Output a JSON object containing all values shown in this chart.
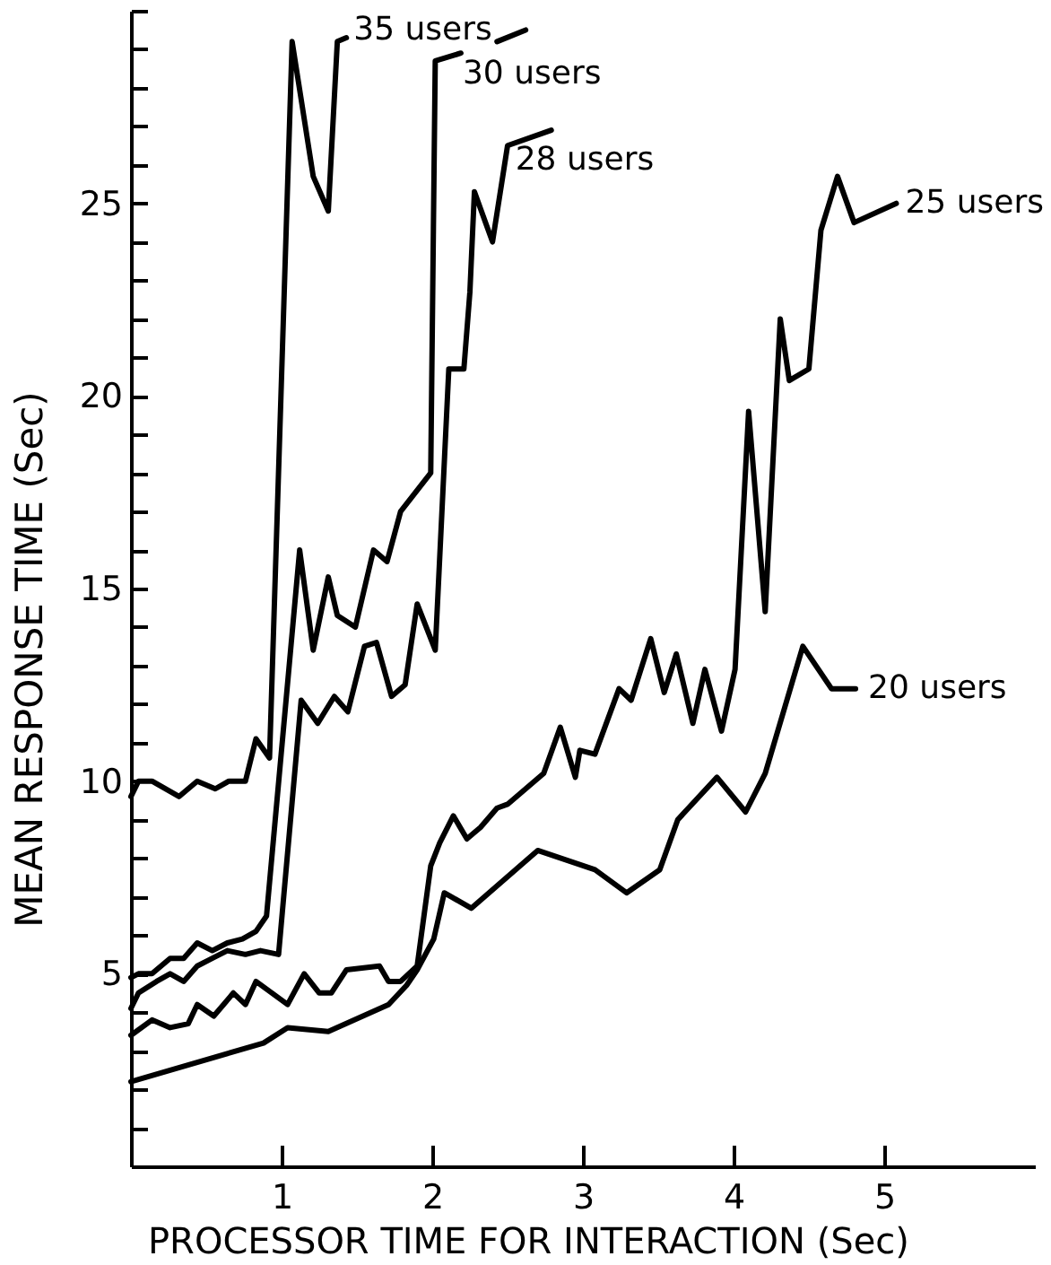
{
  "chart_data": {
    "type": "line",
    "xlabel": "PROCESSOR TIME FOR INTERACTION (Sec)",
    "ylabel": "MEAN RESPONSE TIME (Sec)",
    "xlim": [
      0,
      6
    ],
    "ylim": [
      0,
      30
    ],
    "xticks": [
      1,
      2,
      3,
      4,
      5
    ],
    "yticks": [
      {
        "value": 1,
        "label": null
      },
      {
        "value": 2,
        "label": null
      },
      {
        "value": 3,
        "label": null
      },
      {
        "value": 4,
        "label": null
      },
      5,
      {
        "value": 6,
        "label": null
      },
      {
        "value": 7,
        "label": null
      },
      {
        "value": 8,
        "label": null
      },
      {
        "value": 9,
        "label": null
      },
      10,
      {
        "value": 11,
        "label": null
      },
      {
        "value": 12,
        "label": null
      },
      {
        "value": 13,
        "label": null
      },
      {
        "value": 14,
        "label": null
      },
      15,
      {
        "value": 16,
        "label": null
      },
      {
        "value": 17,
        "label": null
      },
      {
        "value": 18,
        "label": null
      },
      {
        "value": 19,
        "label": null
      },
      20,
      {
        "value": 21,
        "label": null
      },
      {
        "value": 22,
        "label": null
      },
      {
        "value": 23,
        "label": null
      },
      {
        "value": 24,
        "label": null
      },
      25,
      {
        "value": 26,
        "label": null
      },
      {
        "value": 27,
        "label": null
      },
      {
        "value": 28,
        "label": null
      },
      {
        "value": 29,
        "label": null
      },
      {
        "value": 30,
        "label": null
      }
    ],
    "series": [
      {
        "name": "35 users",
        "color": "#000000",
        "x": [
          0,
          0.05,
          0.14,
          0.32,
          0.44,
          0.56,
          0.65,
          0.76,
          0.83,
          0.92,
          1.07,
          1.21,
          1.31,
          1.37,
          1.43,
          1.9,
          2.43,
          2.62
        ],
        "values": [
          9.6,
          10.0,
          10.0,
          9.6,
          10.0,
          9.8,
          10.0,
          10.0,
          11.1,
          10.6,
          29.2,
          25.7,
          24.8,
          29.2,
          29.3,
          null,
          29.2,
          29.5
        ]
      },
      {
        "name": "30 users",
        "color": "#000000",
        "x": [
          0,
          0.05,
          0.14,
          0.26,
          0.35,
          0.44,
          0.54,
          0.64,
          0.74,
          0.83,
          0.9,
          1.12,
          1.21,
          1.31,
          1.37,
          1.49,
          1.61,
          1.7,
          1.79,
          1.99,
          2.02,
          2.19
        ],
        "values": [
          4.9,
          5.0,
          5.0,
          5.4,
          5.4,
          5.8,
          5.6,
          5.8,
          5.9,
          6.1,
          6.5,
          16.0,
          13.4,
          15.3,
          14.3,
          14.0,
          16.0,
          15.7,
          17.0,
          18.0,
          28.7,
          28.9
        ]
      },
      {
        "name": "28 users",
        "color": "#000000",
        "x": [
          0,
          0.05,
          0.17,
          0.26,
          0.35,
          0.44,
          0.54,
          0.64,
          0.76,
          0.86,
          0.98,
          1.13,
          1.24,
          1.35,
          1.44,
          1.55,
          1.63,
          1.73,
          1.82,
          1.9,
          2.02,
          2.11,
          2.21,
          2.25,
          2.28,
          2.4,
          2.5,
          2.79
        ],
        "values": [
          4.1,
          4.5,
          4.8,
          5.0,
          4.8,
          5.2,
          5.4,
          5.6,
          5.5,
          5.6,
          5.5,
          12.1,
          11.5,
          12.2,
          11.8,
          13.5,
          13.6,
          12.2,
          12.5,
          14.6,
          13.4,
          20.7,
          20.7,
          22.7,
          25.3,
          24.0,
          26.5,
          26.9
        ]
      },
      {
        "name": "25 users",
        "color": "#000000",
        "x": [
          0,
          0.14,
          0.26,
          0.38,
          0.44,
          0.55,
          0.68,
          0.76,
          0.83,
          1.04,
          1.15,
          1.25,
          1.33,
          1.43,
          1.65,
          1.71,
          1.79,
          1.9,
          1.99,
          2.05,
          2.14,
          2.23,
          2.32,
          2.43,
          2.5,
          2.62,
          2.74,
          2.85,
          2.95,
          2.98,
          3.08,
          3.24,
          3.32,
          3.45,
          3.54,
          3.62,
          3.73,
          3.81,
          3.92,
          4.01,
          4.1,
          4.21,
          4.31,
          4.37,
          4.5,
          4.58,
          4.69,
          4.8,
          5.08
        ],
        "values": [
          3.4,
          3.8,
          3.6,
          3.7,
          4.2,
          3.9,
          4.5,
          4.2,
          4.8,
          4.2,
          5.0,
          4.5,
          4.5,
          5.1,
          5.2,
          4.8,
          4.8,
          5.2,
          7.8,
          8.4,
          9.1,
          8.5,
          8.8,
          9.3,
          9.4,
          9.8,
          10.2,
          11.4,
          10.1,
          10.8,
          10.7,
          12.4,
          12.1,
          13.7,
          12.3,
          13.3,
          11.5,
          12.9,
          11.3,
          12.9,
          19.6,
          14.4,
          22.0,
          20.4,
          20.7,
          24.3,
          25.7,
          24.5,
          25.0
        ]
      },
      {
        "name": "20 users",
        "color": "#000000",
        "x": [
          0,
          0.88,
          1.04,
          1.31,
          1.71,
          1.83,
          1.9,
          2.01,
          2.08,
          2.26,
          2.7,
          3.08,
          3.29,
          3.51,
          3.63,
          3.89,
          4.08,
          4.21,
          4.46,
          4.65,
          4.81
        ],
        "values": [
          2.2,
          3.2,
          3.6,
          3.5,
          4.2,
          4.7,
          5.1,
          5.9,
          7.1,
          6.7,
          8.2,
          7.7,
          7.1,
          7.7,
          9.0,
          10.1,
          9.2,
          10.2,
          13.5,
          12.4,
          12.4
        ]
      }
    ]
  }
}
